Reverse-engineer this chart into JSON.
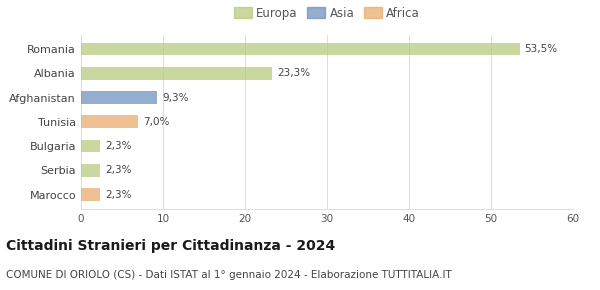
{
  "categories": [
    "Romania",
    "Albania",
    "Afghanistan",
    "Tunisia",
    "Bulgaria",
    "Serbia",
    "Marocco"
  ],
  "values": [
    53.5,
    23.3,
    9.3,
    7.0,
    2.3,
    2.3,
    2.3
  ],
  "labels": [
    "53,5%",
    "23,3%",
    "9,3%",
    "7,0%",
    "2,3%",
    "2,3%",
    "2,3%"
  ],
  "colors": [
    "#b5c97a",
    "#b5c97a",
    "#6b8fbe",
    "#e8a96a",
    "#b5c97a",
    "#b5c97a",
    "#e8a96a"
  ],
  "legend": [
    {
      "label": "Europa",
      "color": "#b5c97a"
    },
    {
      "label": "Asia",
      "color": "#6b8fbe"
    },
    {
      "label": "Africa",
      "color": "#e8a96a"
    }
  ],
  "xlim": [
    0,
    60
  ],
  "xticks": [
    0,
    10,
    20,
    30,
    40,
    50,
    60
  ],
  "title": "Cittadini Stranieri per Cittadinanza - 2024",
  "subtitle": "COMUNE DI ORIOLO (CS) - Dati ISTAT al 1° gennaio 2024 - Elaborazione TUTTITALIA.IT",
  "title_fontsize": 10,
  "subtitle_fontsize": 7.5,
  "bar_alpha": 0.72,
  "background_color": "#ffffff",
  "grid_color": "#dddddd"
}
